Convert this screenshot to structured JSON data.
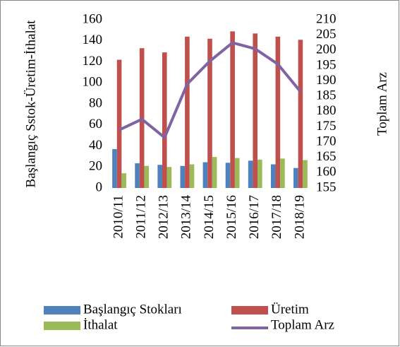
{
  "chart_data": {
    "type": "bar_line",
    "y_label": "Başlangıç Sstok-Üretim-İthalat",
    "y2_label": "Toplam Arz",
    "categories": [
      "2010/11",
      "2011/12",
      "2012/13",
      "2013/14",
      "2014/15",
      "2015/16",
      "2016/17",
      "2017/18",
      "2018/19"
    ],
    "series": [
      {
        "name": "Başlangıç Stokları",
        "color": "#4f81bd",
        "type": "bar",
        "values": [
          37,
          23.5,
          22,
          21,
          24.5,
          24,
          26,
          22.5,
          19
        ]
      },
      {
        "name": "Üretim",
        "color": "#c0504d",
        "type": "bar",
        "values": [
          122,
          133,
          129,
          144,
          142,
          149,
          147,
          144,
          141
        ]
      },
      {
        "name": "İthalat",
        "color": "#9bbb59",
        "type": "bar",
        "values": [
          14,
          21,
          20,
          22.5,
          29.5,
          28.5,
          27,
          28,
          26.5
        ]
      },
      {
        "name": "Toplam Arz",
        "color": "#8064a2",
        "type": "line",
        "axis": "y2",
        "values": [
          174,
          177.5,
          171.5,
          189,
          196.5,
          202.5,
          200.5,
          195.5,
          186.5
        ]
      }
    ],
    "ylim": [
      0,
      160
    ],
    "yticks": [
      0,
      20,
      40,
      60,
      80,
      100,
      120,
      140,
      160
    ],
    "y2lim": [
      155,
      210
    ],
    "y2ticks": [
      155,
      160,
      165,
      170,
      175,
      180,
      185,
      190,
      195,
      200,
      205,
      210
    ]
  }
}
